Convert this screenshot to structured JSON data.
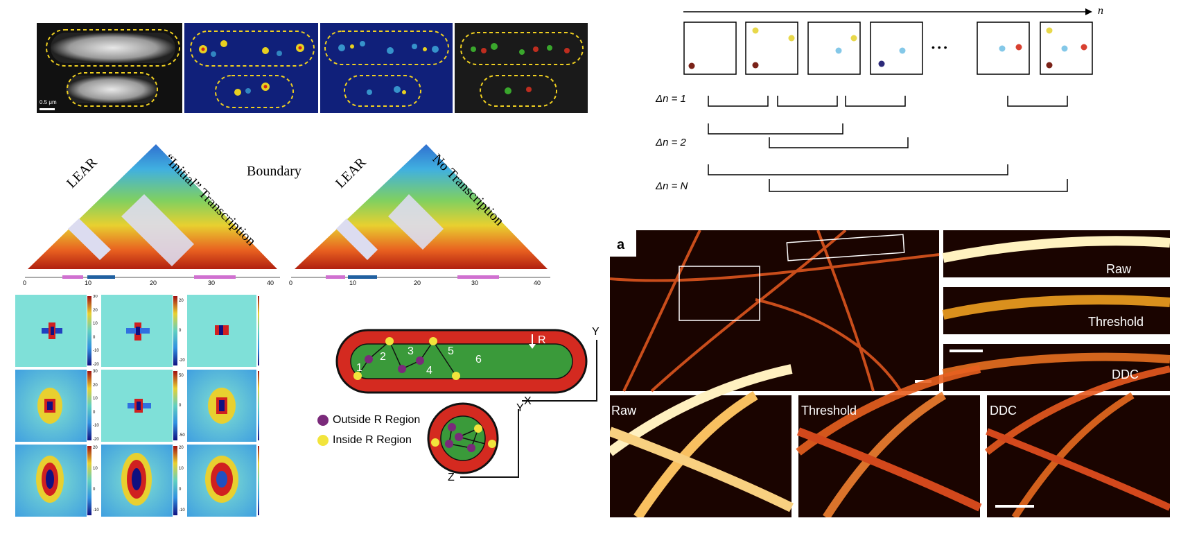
{
  "microscopy_strip": {
    "scale_bar_label": "0.5 μm"
  },
  "hic": {
    "left_label_1": "LEAR",
    "left_label_2": "“Initial” Transcription",
    "boundary_label": "Boundary",
    "right_label_1": "LEAR",
    "right_label_2": "No Transcription",
    "axis_ticks": [
      "0",
      "10",
      "20",
      "30",
      "40"
    ]
  },
  "otf_grid": {
    "colorbars": [
      [
        "30",
        "20",
        "10",
        "0",
        "-10",
        "-20"
      ],
      [
        "20",
        "0",
        "-20"
      ],
      [
        "30",
        "20",
        "10",
        "0",
        "-10",
        "-20"
      ],
      [
        "50",
        "0",
        "-50"
      ],
      [
        "20",
        "10",
        "0",
        "-10"
      ],
      [
        "20",
        "10",
        "0",
        "-10"
      ]
    ]
  },
  "sequence": {
    "axis_label": "n",
    "delta_labels": [
      "Δn = 1",
      "Δn = 2",
      "Δn = N"
    ],
    "ellipsis": "• • •",
    "dot_colors": {
      "yellow": "#e8d84a",
      "brown": "#7a2218",
      "cyan": "#84c8e8",
      "navy": "#2c2a7a",
      "red": "#d84030"
    }
  },
  "cell_diagram": {
    "region_label": "R",
    "axis_y": "Y",
    "axis_x": "X",
    "axis_z": "Z",
    "axis_y2": "Y",
    "steps": [
      "1",
      "2",
      "3",
      "4",
      "5",
      "6"
    ],
    "legend": [
      {
        "label": "Outside R Region",
        "color": "#7a2a7a"
      },
      {
        "label": "Inside R Region",
        "color": "#f2e43c"
      }
    ]
  },
  "filaments": {
    "panel_letter": "a",
    "side_labels": [
      "Raw",
      "Threshold",
      "DDC"
    ],
    "bottom_labels": [
      "Raw",
      "Threshold",
      "DDC"
    ]
  }
}
